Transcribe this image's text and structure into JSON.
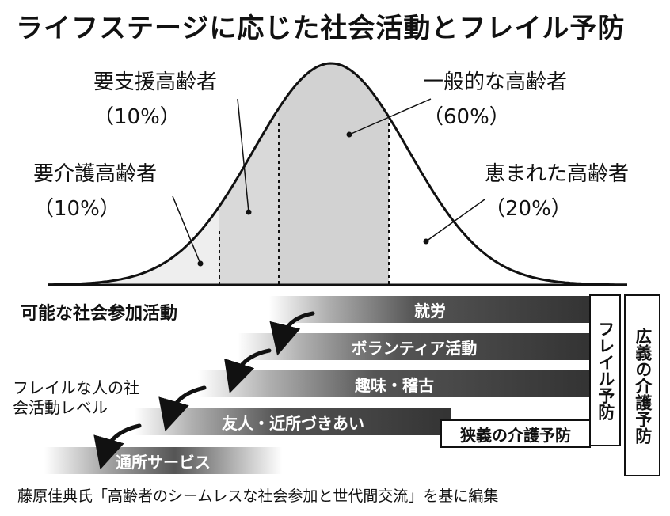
{
  "title": "ライフステージに応じた社会活動とフレイル予防",
  "groups": [
    {
      "name": "要介護高齢者",
      "pct": "（10%）"
    },
    {
      "name": "要支援高齢者",
      "pct": "（10%）"
    },
    {
      "name": "一般的な高齢者",
      "pct": "（60%）"
    },
    {
      "name": "恵まれた高齢者",
      "pct": "（20%）"
    }
  ],
  "activities_title": "可能な社会参加活動",
  "activities": [
    "就労",
    "ボランティア活動",
    "趣味・稽古",
    "友人・近所づきあい",
    "通所サービス"
  ],
  "frail_level_label": "フレイルな人の社会活動レベル",
  "boxes": {
    "frailty_prevention": "フレイル予防",
    "broad_care_prevention": "広義の介護予防",
    "narrow_care_prevention": "狭義の介護予防"
  },
  "source": "藤原佳典氏「高齢者のシームレスな社会参加と世代間交流」を基に編集",
  "colors": {
    "curve_fill_light": "#eeeeee",
    "curve_fill_mid": "#d3d3d3",
    "bar_dark": "#333333"
  }
}
